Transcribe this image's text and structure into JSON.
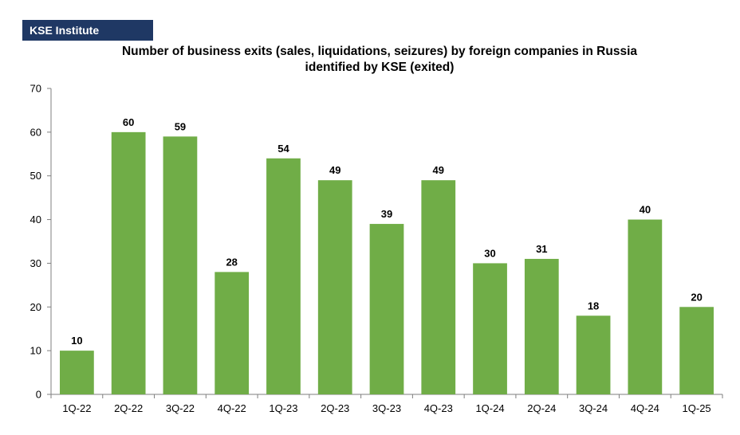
{
  "brand": {
    "name": "KSE Institute",
    "color": "#1f3864"
  },
  "chart_data": {
    "type": "bar",
    "title_lines": [
      "Number of business exits (sales, liquidations, seizures) by foreign companies in Russia",
      "identified by KSE (exited)"
    ],
    "xlabel": "",
    "ylabel": "",
    "categories": [
      "1Q-22",
      "2Q-22",
      "3Q-22",
      "4Q-22",
      "1Q-23",
      "2Q-23",
      "3Q-23",
      "4Q-23",
      "1Q-24",
      "2Q-24",
      "3Q-24",
      "4Q-24",
      "1Q-25"
    ],
    "values": [
      10,
      60,
      59,
      28,
      54,
      49,
      39,
      49,
      30,
      31,
      18,
      40,
      20
    ],
    "ylim": [
      0,
      70
    ],
    "yticks": [
      0,
      10,
      20,
      30,
      40,
      50,
      60,
      70
    ],
    "bar_color": "#70ad47",
    "data_labels": true,
    "grid": false,
    "legend": "none"
  }
}
